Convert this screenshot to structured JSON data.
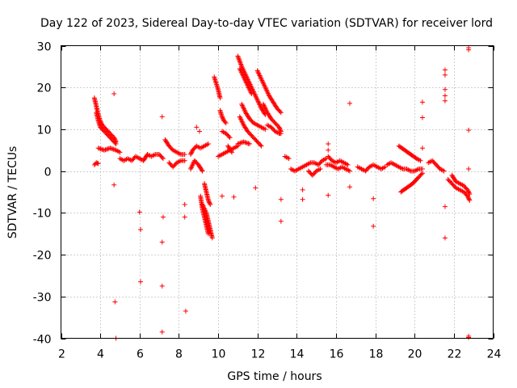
{
  "chart_data": {
    "type": "scatter",
    "title": "Day 122 of 2023, Sidereal Day-to-day VTEC variation (SDTVAR) for receiver lord",
    "xlabel": "GPS time / hours",
    "ylabel": "SDTVAR / TECUs",
    "xlim": [
      2,
      24
    ],
    "ylim": [
      -40,
      30
    ],
    "xticks": [
      2,
      4,
      6,
      8,
      10,
      12,
      14,
      16,
      18,
      20,
      22,
      24
    ],
    "yticks": [
      -40,
      -30,
      -20,
      -10,
      0,
      10,
      20,
      30
    ],
    "grid": true,
    "marker": "+",
    "color": "#ff0000",
    "series": [
      {
        "name": "SDTVAR",
        "segments": [
          [
            [
              3.7,
              1.5
            ],
            [
              3.8,
              2.0
            ],
            [
              3.9,
              1.8
            ]
          ],
          [
            [
              3.7,
              17.5
            ],
            [
              3.8,
              15.5
            ],
            [
              3.9,
              13.5
            ],
            [
              4.0,
              12.0
            ],
            [
              4.1,
              11.0
            ],
            [
              4.3,
              10.0
            ],
            [
              4.5,
              9.0
            ],
            [
              4.7,
              8.0
            ],
            [
              4.8,
              7.0
            ]
          ],
          [
            [
              3.8,
              14.0
            ],
            [
              3.9,
              12.0
            ],
            [
              4.0,
              10.5
            ],
            [
              4.2,
              9.5
            ],
            [
              4.4,
              8.5
            ],
            [
              4.6,
              7.5
            ],
            [
              4.8,
              6.5
            ]
          ],
          [
            [
              3.9,
              5.5
            ],
            [
              4.2,
              5.0
            ],
            [
              4.5,
              5.5
            ],
            [
              4.8,
              5.0
            ],
            [
              5.0,
              4.5
            ]
          ],
          [
            [
              5.0,
              3.0
            ],
            [
              5.2,
              2.5
            ],
            [
              5.4,
              3.0
            ],
            [
              5.6,
              2.5
            ],
            [
              5.8,
              3.5
            ],
            [
              6.0,
              3.0
            ],
            [
              6.2,
              2.5
            ],
            [
              6.4,
              4.0
            ],
            [
              6.6,
              3.5
            ],
            [
              6.8,
              4.0
            ],
            [
              7.0,
              4.0
            ],
            [
              7.2,
              3.0
            ]
          ],
          [
            [
              7.3,
              7.5
            ],
            [
              7.5,
              6.0
            ],
            [
              7.7,
              5.0
            ],
            [
              7.9,
              4.5
            ],
            [
              8.1,
              4.0
            ],
            [
              8.3,
              4.0
            ]
          ],
          [
            [
              7.5,
              2.0
            ],
            [
              7.7,
              1.0
            ],
            [
              7.9,
              2.0
            ],
            [
              8.1,
              2.5
            ],
            [
              8.3,
              2.5
            ]
          ],
          [
            [
              8.6,
              4.0
            ],
            [
              8.7,
              5.0
            ],
            [
              8.9,
              6.0
            ],
            [
              9.1,
              5.5
            ],
            [
              9.3,
              6.0
            ],
            [
              9.5,
              6.5
            ]
          ],
          [
            [
              8.6,
              0.5
            ],
            [
              8.8,
              2.5
            ],
            [
              9.0,
              1.5
            ],
            [
              9.2,
              0.0
            ]
          ],
          [
            [
              9.1,
              -6.0
            ],
            [
              9.2,
              -9.0
            ],
            [
              9.3,
              -11.0
            ],
            [
              9.4,
              -13.0
            ],
            [
              9.5,
              -15.0
            ]
          ],
          [
            [
              9.2,
              -8.0
            ],
            [
              9.4,
              -10.0
            ],
            [
              9.5,
              -12.0
            ],
            [
              9.6,
              -14.0
            ],
            [
              9.7,
              -16.0
            ]
          ],
          [
            [
              9.3,
              -3.0
            ],
            [
              9.4,
              -5.0
            ],
            [
              9.5,
              -7.0
            ],
            [
              9.6,
              -8.0
            ]
          ],
          [
            [
              9.8,
              22.5
            ],
            [
              9.9,
              21.0
            ],
            [
              10.0,
              19.5
            ],
            [
              10.1,
              17.5
            ]
          ],
          [
            [
              10.1,
              14.5
            ],
            [
              10.2,
              13.0
            ],
            [
              10.3,
              12.0
            ],
            [
              10.4,
              11.5
            ]
          ],
          [
            [
              10.0,
              3.5
            ],
            [
              10.2,
              4.0
            ],
            [
              10.4,
              4.5
            ],
            [
              10.6,
              5.0
            ],
            [
              10.8,
              5.5
            ],
            [
              11.0,
              6.0
            ]
          ],
          [
            [
              10.2,
              9.5
            ],
            [
              10.4,
              9.0
            ],
            [
              10.6,
              8.0
            ]
          ],
          [
            [
              10.5,
              6.0
            ],
            [
              10.7,
              4.5
            ]
          ],
          [
            [
              11.0,
              27.5
            ],
            [
              11.2,
              25.0
            ],
            [
              11.4,
              23.0
            ],
            [
              11.6,
              21.0
            ],
            [
              11.8,
              19.0
            ],
            [
              12.0,
              17.0
            ],
            [
              12.2,
              15.0
            ],
            [
              12.4,
              13.5
            ]
          ],
          [
            [
              11.1,
              24.5
            ],
            [
              11.3,
              22.5
            ],
            [
              11.5,
              20.5
            ],
            [
              11.7,
              18.5
            ]
          ],
          [
            [
              11.2,
              16.0
            ],
            [
              11.4,
              14.0
            ],
            [
              11.6,
              12.5
            ],
            [
              11.8,
              11.5
            ],
            [
              12.0,
              11.0
            ],
            [
              12.2,
              10.5
            ],
            [
              12.4,
              10.0
            ]
          ],
          [
            [
              11.1,
              13.0
            ],
            [
              11.3,
              11.0
            ],
            [
              11.5,
              9.5
            ],
            [
              11.7,
              8.5
            ],
            [
              11.9,
              7.5
            ],
            [
              12.1,
              6.5
            ],
            [
              12.2,
              6.0
            ]
          ],
          [
            [
              12.0,
              24.0
            ],
            [
              12.2,
              22.0
            ],
            [
              12.4,
              20.0
            ],
            [
              12.6,
              18.0
            ],
            [
              12.8,
              16.5
            ],
            [
              13.0,
              15.0
            ],
            [
              13.2,
              14.0
            ]
          ],
          [
            [
              12.3,
              16.0
            ],
            [
              12.5,
              14.0
            ],
            [
              12.7,
              12.5
            ],
            [
              12.9,
              11.5
            ],
            [
              13.1,
              10.5
            ],
            [
              13.2,
              9.5
            ]
          ],
          [
            [
              12.5,
              11.0
            ],
            [
              12.7,
              10.5
            ],
            [
              12.9,
              9.5
            ],
            [
              13.1,
              9.0
            ],
            [
              13.2,
              9.0
            ]
          ],
          [
            [
              11.0,
              6.5
            ],
            [
              11.3,
              7.0
            ],
            [
              11.6,
              6.5
            ]
          ],
          [
            [
              13.4,
              3.5
            ],
            [
              13.6,
              3.0
            ]
          ],
          [
            [
              13.7,
              0.5
            ],
            [
              13.9,
              0.0
            ],
            [
              14.1,
              0.5
            ],
            [
              14.3,
              1.0
            ],
            [
              14.5,
              1.5
            ],
            [
              14.7,
              2.0
            ],
            [
              14.9,
              2.0
            ],
            [
              15.1,
              1.5
            ],
            [
              15.3,
              2.5
            ],
            [
              15.5,
              3.0
            ]
          ],
          [
            [
              14.6,
              0.0
            ],
            [
              14.8,
              -1.0
            ],
            [
              15.0,
              0.0
            ],
            [
              15.2,
              0.5
            ]
          ],
          [
            [
              15.5,
              1.5
            ],
            [
              15.7,
              1.5
            ],
            [
              15.9,
              1.0
            ],
            [
              16.1,
              0.5
            ],
            [
              16.3,
              1.0
            ],
            [
              16.5,
              0.5
            ],
            [
              16.7,
              0.0
            ]
          ],
          [
            [
              15.6,
              3.5
            ],
            [
              15.8,
              2.5
            ],
            [
              16.0,
              2.0
            ],
            [
              16.2,
              2.5
            ],
            [
              16.4,
              2.0
            ],
            [
              16.6,
              1.5
            ]
          ],
          [
            [
              17.1,
              1.0
            ],
            [
              17.3,
              0.5
            ],
            [
              17.5,
              0.0
            ],
            [
              17.7,
              1.0
            ],
            [
              17.9,
              1.5
            ],
            [
              18.1,
              1.0
            ],
            [
              18.3,
              0.5
            ],
            [
              18.5,
              1.0
            ]
          ],
          [
            [
              18.6,
              1.5
            ],
            [
              18.8,
              2.0
            ],
            [
              19.0,
              1.5
            ],
            [
              19.2,
              1.0
            ],
            [
              19.4,
              0.5
            ],
            [
              19.6,
              0.5
            ],
            [
              19.8,
              0.0
            ],
            [
              20.0,
              0.0
            ],
            [
              20.2,
              0.5
            ],
            [
              20.4,
              0.5
            ]
          ],
          [
            [
              19.2,
              6.0
            ],
            [
              19.5,
              5.0
            ],
            [
              19.8,
              4.0
            ],
            [
              20.1,
              3.0
            ],
            [
              20.3,
              2.5
            ]
          ],
          [
            [
              19.3,
              -5.0
            ],
            [
              19.6,
              -4.0
            ],
            [
              19.9,
              -3.0
            ],
            [
              20.2,
              -1.5
            ],
            [
              20.4,
              -0.5
            ]
          ],
          [
            [
              20.7,
              2.0
            ],
            [
              20.9,
              2.5
            ],
            [
              21.1,
              1.5
            ],
            [
              21.3,
              0.5
            ],
            [
              21.5,
              0.0
            ]
          ],
          [
            [
              21.7,
              -2.0
            ],
            [
              21.9,
              -3.0
            ],
            [
              22.1,
              -4.0
            ],
            [
              22.3,
              -4.5
            ],
            [
              22.5,
              -5.0
            ],
            [
              22.7,
              -6.0
            ],
            [
              22.8,
              -7.0
            ]
          ],
          [
            [
              21.9,
              -1.0
            ],
            [
              22.1,
              -2.5
            ],
            [
              22.3,
              -3.0
            ],
            [
              22.5,
              -3.5
            ],
            [
              22.7,
              -4.5
            ],
            [
              22.8,
              -5.5
            ]
          ]
        ],
        "points": [
          [
            4.7,
            18.5
          ],
          [
            4.7,
            -3.3
          ],
          [
            4.75,
            -31.3
          ],
          [
            4.8,
            -40.0
          ],
          [
            6.0,
            -9.8
          ],
          [
            6.05,
            -14.0
          ],
          [
            6.05,
            -26.5
          ],
          [
            7.15,
            13.0
          ],
          [
            7.2,
            -11.0
          ],
          [
            7.15,
            -17.0
          ],
          [
            7.15,
            -27.5
          ],
          [
            7.15,
            -38.5
          ],
          [
            8.3,
            -8.0
          ],
          [
            8.3,
            -11.0
          ],
          [
            8.35,
            -33.5
          ],
          [
            8.9,
            10.5
          ],
          [
            9.05,
            9.5
          ],
          [
            10.2,
            -6.0
          ],
          [
            10.8,
            -6.2
          ],
          [
            11.9,
            -4.0
          ],
          [
            13.2,
            -6.8
          ],
          [
            13.2,
            -12.0
          ],
          [
            14.3,
            -4.5
          ],
          [
            14.3,
            -6.8
          ],
          [
            15.6,
            6.5
          ],
          [
            15.6,
            5.0
          ],
          [
            15.6,
            -5.8
          ],
          [
            16.7,
            16.2
          ],
          [
            16.7,
            -3.8
          ],
          [
            17.9,
            -6.6
          ],
          [
            17.9,
            -13.2
          ],
          [
            20.4,
            16.5
          ],
          [
            20.4,
            12.8
          ],
          [
            20.4,
            5.5
          ],
          [
            21.55,
            24.2
          ],
          [
            21.55,
            23.0
          ],
          [
            21.55,
            19.5
          ],
          [
            21.55,
            18.0
          ],
          [
            21.55,
            16.8
          ],
          [
            21.55,
            -8.5
          ],
          [
            21.55,
            -16.0
          ],
          [
            22.75,
            29.5
          ],
          [
            22.75,
            29.0
          ],
          [
            22.75,
            9.8
          ],
          [
            22.75,
            0.5
          ],
          [
            22.75,
            -39.5
          ],
          [
            22.75,
            -39.8
          ]
        ]
      }
    ]
  }
}
